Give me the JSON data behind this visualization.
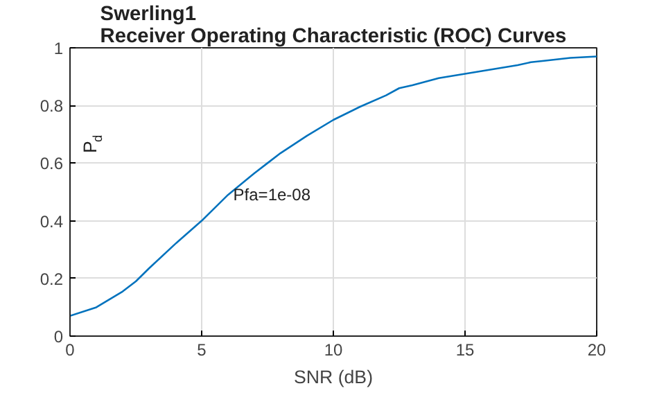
{
  "chart_data": {
    "type": "line",
    "title": "Swerling1\nReceiver Operating Characteristic (ROC) Curves",
    "xlabel": "SNR (dB)",
    "ylabel": "P$_{d}$",
    "x": [
      0,
      1,
      2,
      2.5,
      3,
      4,
      5,
      6,
      7,
      7.5,
      8,
      9,
      10,
      11,
      12,
      12.5,
      13,
      14,
      15,
      16,
      17,
      17.5,
      18,
      19,
      20
    ],
    "series": [
      {
        "color": "#0072bd",
        "values": [
          0.07,
          0.1,
          0.155,
          0.19,
          0.235,
          0.32,
          0.4,
          0.49,
          0.565,
          0.6,
          0.635,
          0.695,
          0.75,
          0.795,
          0.835,
          0.86,
          0.87,
          0.895,
          0.91,
          0.925,
          0.94,
          0.95,
          0.955,
          0.965,
          0.97
        ]
      }
    ],
    "annotations": [
      {
        "text": "Pfa=1e-08",
        "x": 6.2,
        "y": 0.49
      }
    ],
    "xlim": [
      0,
      20
    ],
    "ylim": [
      0,
      1
    ],
    "xticks": [
      0,
      5,
      10,
      15,
      20
    ],
    "yticks": [
      0,
      0.2,
      0.4,
      0.6,
      0.8,
      1
    ],
    "grid": true,
    "marker": "none",
    "line_style": "solid"
  }
}
